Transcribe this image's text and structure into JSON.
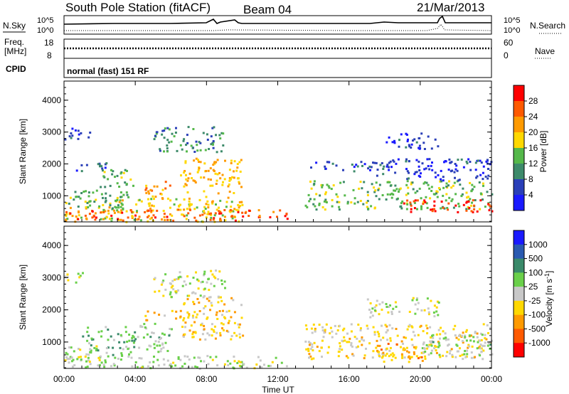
{
  "header": {
    "title": "South Pole Station (fitACF)",
    "beam": "Beam 04",
    "date": "21/Mar/2013"
  },
  "panels": {
    "nsky": {
      "left_label": "N.Sky",
      "right_label": "N.Search",
      "left_ticks": [
        "10^5",
        "10^0"
      ],
      "right_ticks": [
        "10^5",
        "10^0"
      ]
    },
    "freq": {
      "left_label_1": "Freq.",
      "left_label_2": "[MHz]",
      "right_label": "Nave",
      "left_ticks": [
        "18",
        "8"
      ],
      "right_ticks": [
        "60",
        "0"
      ]
    },
    "cpid": {
      "label": "CPID",
      "text": "normal (fast) 151 RF"
    }
  },
  "colors": {
    "power_scale": [
      "#1a1aff",
      "#2a3fb8",
      "#3d8a6a",
      "#55b84a",
      "#ffd800",
      "#ff9a00",
      "#ff5a00",
      "#ff0000"
    ],
    "velocity_scale": [
      "#ff0000",
      "#ff5a00",
      "#ff9a00",
      "#ffd800",
      "#c8c8c8",
      "#6ad04a",
      "#3a8a6a",
      "#2a5ab0",
      "#1a1aff"
    ]
  },
  "chart_data": [
    {
      "type": "heatmap",
      "name": "power",
      "ylabel": "Slant Range [km]",
      "xlabel": "Time UT",
      "x_ticks": [
        "00:00",
        "04:00",
        "08:00",
        "12:00",
        "16:00",
        "20:00",
        "00:00"
      ],
      "xlim_hours": [
        0,
        24
      ],
      "ylim": [
        180,
        4600
      ],
      "y_ticks": [
        1000,
        2000,
        3000,
        4000
      ],
      "colorbar": {
        "label": "Power [dB]",
        "ticks": [
          "28",
          "24",
          "20",
          "16",
          "12",
          "8",
          "4"
        ],
        "range": [
          0,
          32
        ]
      },
      "regions": [
        {
          "t0": 0.0,
          "t1": 10.0,
          "r0": 200,
          "r1": 1000,
          "v": 18
        },
        {
          "t0": 0.2,
          "t1": 3.5,
          "r0": 600,
          "r1": 1200,
          "v": 12
        },
        {
          "t0": 0.5,
          "t1": 2.5,
          "r0": 1800,
          "r1": 2100,
          "v": 6
        },
        {
          "t0": 0.0,
          "t1": 1.5,
          "r0": 2800,
          "r1": 3200,
          "v": 6
        },
        {
          "t0": 2.0,
          "t1": 4.0,
          "r0": 1300,
          "r1": 1900,
          "v": 14
        },
        {
          "t0": 4.5,
          "t1": 6.0,
          "r0": 800,
          "r1": 1500,
          "v": 22
        },
        {
          "t0": 6.5,
          "t1": 10.0,
          "r0": 1100,
          "r1": 2200,
          "v": 20
        },
        {
          "t0": 5.0,
          "t1": 9.0,
          "r0": 2400,
          "r1": 3200,
          "v": 10
        },
        {
          "t0": 0.0,
          "t1": 12.5,
          "r0": 250,
          "r1": 600,
          "v": 26
        },
        {
          "t0": 13.5,
          "t1": 24.0,
          "r0": 600,
          "r1": 1500,
          "v": 14
        },
        {
          "t0": 19.0,
          "t1": 24.0,
          "r0": 500,
          "r1": 900,
          "v": 28
        },
        {
          "t0": 13.5,
          "t1": 18.0,
          "r0": 1800,
          "r1": 2100,
          "v": 6
        },
        {
          "t0": 17.5,
          "t1": 24.0,
          "r0": 1500,
          "r1": 2200,
          "v": 5
        },
        {
          "t0": 18.0,
          "t1": 21.0,
          "r0": 2500,
          "r1": 3000,
          "v": 5
        }
      ]
    },
    {
      "type": "heatmap",
      "name": "velocity",
      "ylabel": "Slant Range [km]",
      "xlabel": "Time UT",
      "x_ticks": [
        "00:00",
        "04:00",
        "08:00",
        "12:00",
        "16:00",
        "20:00",
        "00:00"
      ],
      "xlim_hours": [
        0,
        24
      ],
      "ylim": [
        180,
        4600
      ],
      "y_ticks": [
        1000,
        2000,
        3000,
        4000
      ],
      "colorbar": {
        "label": "Velocity [m s^-1]",
        "ticks": [
          "1000",
          "500",
          "100",
          "25",
          "-25",
          "-100",
          "-500",
          "-1000"
        ],
        "range": [
          -1200,
          1200
        ]
      },
      "regions": [
        {
          "t0": 0.0,
          "t1": 12.5,
          "r0": 200,
          "r1": 600,
          "v": 80
        },
        {
          "t0": 0.0,
          "t1": 2.0,
          "r0": 300,
          "r1": 900,
          "v": 0
        },
        {
          "t0": 1.0,
          "t1": 4.0,
          "r0": 600,
          "r1": 1500,
          "v": 300
        },
        {
          "t0": 4.0,
          "t1": 6.0,
          "r0": 700,
          "r1": 1600,
          "v": 150
        },
        {
          "t0": 6.5,
          "t1": 10.0,
          "r0": 1100,
          "r1": 2400,
          "v": -300
        },
        {
          "t0": 4.5,
          "t1": 7.0,
          "r0": 1700,
          "r1": 2000,
          "v": -400
        },
        {
          "t0": 5.0,
          "t1": 9.0,
          "r0": 2400,
          "r1": 3300,
          "v": 0
        },
        {
          "t0": 0.0,
          "t1": 1.0,
          "r0": 2800,
          "r1": 3200,
          "v": 0
        },
        {
          "t0": 13.5,
          "t1": 24.0,
          "r0": 500,
          "r1": 1600,
          "v": -200
        },
        {
          "t0": 17.5,
          "t1": 20.5,
          "r0": 400,
          "r1": 1000,
          "v": -450
        },
        {
          "t0": 20.0,
          "t1": 24.0,
          "r0": 600,
          "r1": 1300,
          "v": 150
        },
        {
          "t0": 17.0,
          "t1": 21.0,
          "r0": 1800,
          "r1": 2400,
          "v": 0
        }
      ]
    }
  ],
  "axis": {
    "x_title": "Time UT",
    "y_title": "Slant Range [km]",
    "y_ticks": [
      "1000",
      "2000",
      "3000",
      "4000"
    ],
    "x_ticks": [
      "00:00",
      "04:00",
      "08:00",
      "12:00",
      "16:00",
      "20:00",
      "00:00"
    ]
  }
}
